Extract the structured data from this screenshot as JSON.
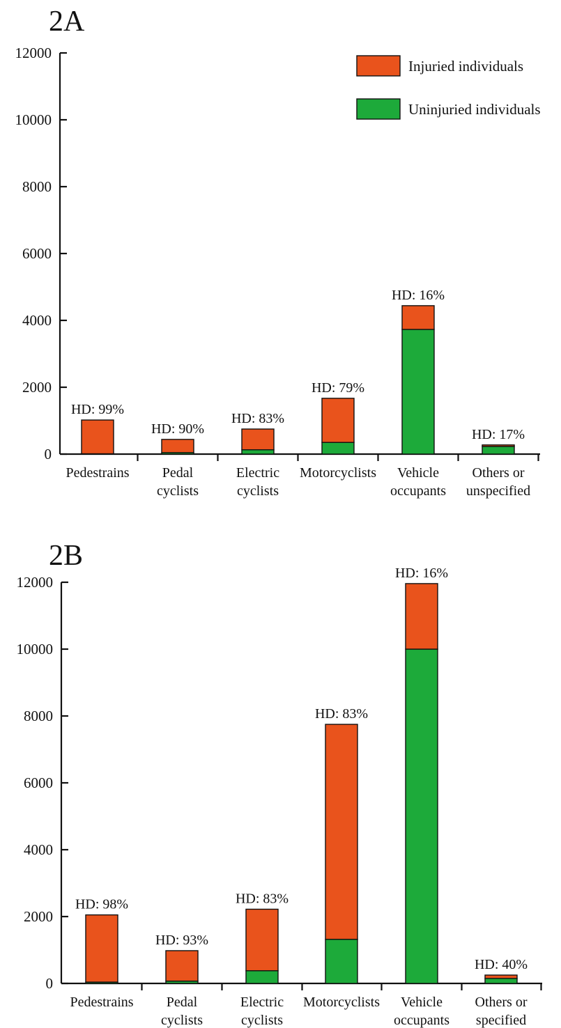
{
  "legend": {
    "items": [
      {
        "label": "Injuried individuals",
        "color": "#E9531C"
      },
      {
        "label": "Uninjuried individuals",
        "color": "#1DAA3A"
      }
    ]
  },
  "chart_data": [
    {
      "type": "bar",
      "stacked": true,
      "title": "2A",
      "categories": [
        [
          "Pedestrains"
        ],
        [
          "Pedal",
          "cyclists"
        ],
        [
          "Electric",
          "cyclists"
        ],
        [
          "Motorcyclists"
        ],
        [
          "Vehicle",
          "occupants"
        ],
        [
          "Others or",
          "unspecified"
        ]
      ],
      "series": [
        {
          "name": "Uninjuried individuals",
          "color": "#1DAA3A",
          "values": [
            10,
            45,
            130,
            350,
            3730,
            230
          ]
        },
        {
          "name": "Injuried individuals",
          "color": "#E9531C",
          "values": [
            1010,
            395,
            620,
            1320,
            710,
            45
          ]
        }
      ],
      "annotations": [
        "HD: 99%",
        "HD: 90%",
        "HD: 83%",
        "HD: 79%",
        "HD: 16%",
        "HD: 17%"
      ],
      "ylim": [
        0,
        12000
      ],
      "yticks": [
        0,
        2000,
        4000,
        6000,
        8000,
        10000,
        12000
      ],
      "xlabel": "",
      "ylabel": "",
      "grid": false,
      "legend_position": "top-right"
    },
    {
      "type": "bar",
      "stacked": true,
      "title": "2B",
      "categories": [
        [
          "Pedestrains"
        ],
        [
          "Pedal",
          "cyclists"
        ],
        [
          "Electric",
          "cyclists"
        ],
        [
          "Motorcyclists"
        ],
        [
          "Vehicle",
          "occupants"
        ],
        [
          "Others or",
          "specified"
        ]
      ],
      "series": [
        {
          "name": "Uninjuried individuals",
          "color": "#1DAA3A",
          "values": [
            40,
            70,
            380,
            1320,
            10000,
            150
          ]
        },
        {
          "name": "Injuried individuals",
          "color": "#E9531C",
          "values": [
            2010,
            910,
            1840,
            6430,
            1960,
            100
          ]
        }
      ],
      "annotations": [
        "HD: 98%",
        "HD: 93%",
        "HD: 83%",
        "HD: 83%",
        "HD: 16%",
        "HD: 40%"
      ],
      "ylim": [
        0,
        12000
      ],
      "yticks": [
        0,
        2000,
        4000,
        6000,
        8000,
        10000,
        12000
      ],
      "xlabel": "",
      "ylabel": "",
      "grid": false
    }
  ]
}
